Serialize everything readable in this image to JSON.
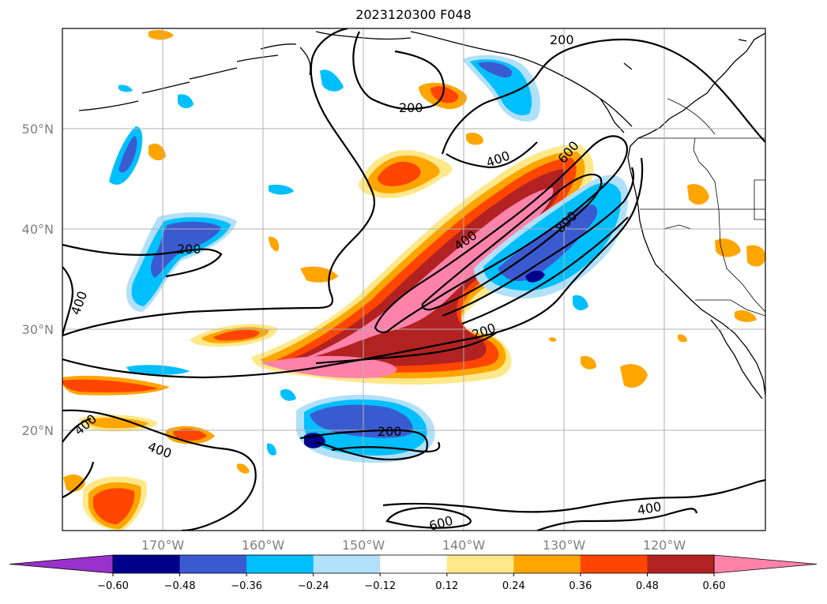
{
  "title": "2023120300 F048",
  "map": {
    "lat_labels": [
      "50°N",
      "40°N",
      "30°N",
      "20°N"
    ],
    "lon_labels": [
      "170°W",
      "160°W",
      "150°W",
      "140°W",
      "130°W",
      "120°W"
    ],
    "contour_labels": [
      "200",
      "200",
      "200",
      "200",
      "200",
      "400",
      "400",
      "400",
      "400",
      "400",
      "400",
      "600",
      "600",
      "800"
    ]
  },
  "colorbar": {
    "ticks": [
      "−0.60",
      "−0.48",
      "−0.36",
      "−0.24",
      "−0.12",
      "0.12",
      "0.24",
      "0.36",
      "0.48",
      "0.60"
    ],
    "colors": [
      "#9932cc",
      "#00008b",
      "#3a5bd0",
      "#00bfff",
      "#b0e0fa",
      "#ffffff",
      "#ffe88a",
      "#ffa500",
      "#ff4500",
      "#b22222",
      "#ff82ab"
    ]
  }
}
